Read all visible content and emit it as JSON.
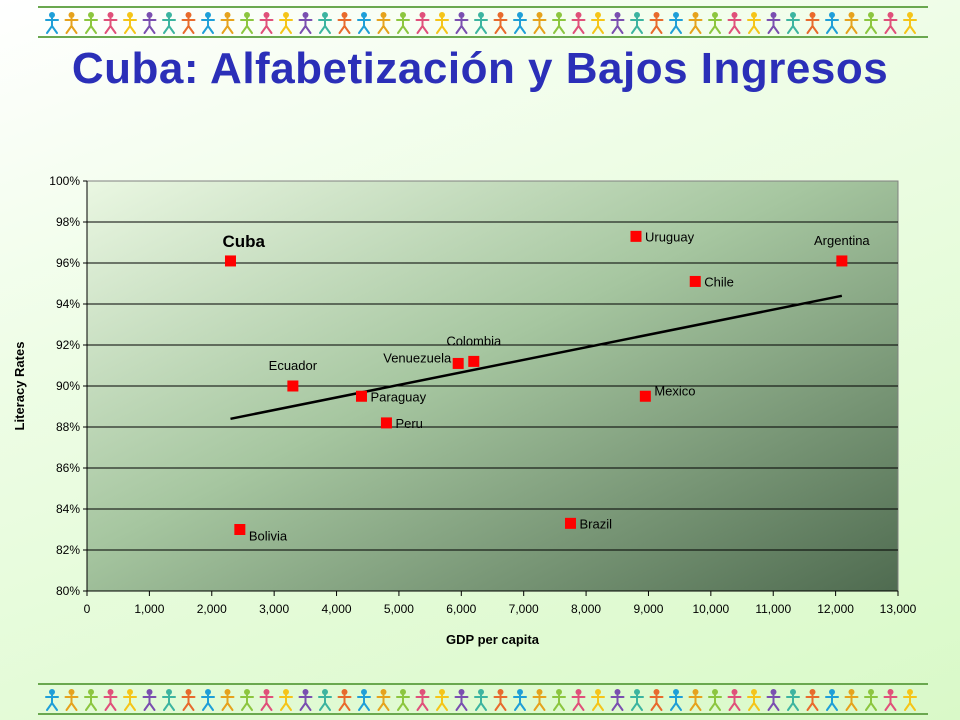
{
  "slide": {
    "title": "Cuba: Alfabetización y Bajos Ingresos"
  },
  "decoration": {
    "figure_colors": [
      "#1f9fd8",
      "#e6a21c",
      "#8cc63f",
      "#e0507a",
      "#f5c518",
      "#7a4fb0",
      "#3cb4a0",
      "#e86a2c"
    ]
  },
  "chart_data": {
    "type": "scatter",
    "xlabel": "GDP per capita",
    "ylabel": "Literacy Rates",
    "xlim": [
      0,
      13000
    ],
    "ylim": [
      80,
      100
    ],
    "x_ticks": [
      0,
      1000,
      2000,
      3000,
      4000,
      5000,
      6000,
      7000,
      8000,
      9000,
      10000,
      11000,
      12000,
      13000
    ],
    "x_tick_labels": [
      "0",
      "1,000",
      "2,000",
      "3,000",
      "4,000",
      "5,000",
      "6,000",
      "7,000",
      "8,000",
      "9,000",
      "10,000",
      "11,000",
      "12,000",
      "13,000"
    ],
    "y_ticks": [
      80,
      82,
      84,
      86,
      88,
      90,
      92,
      94,
      96,
      98,
      100
    ],
    "y_tick_labels": [
      "80%",
      "82%",
      "84%",
      "86%",
      "88%",
      "90%",
      "92%",
      "94%",
      "96%",
      "98%",
      "100%"
    ],
    "grid": "horizontal",
    "marker_color": "#ff0000",
    "trendline_color": "#000000",
    "points": [
      {
        "label": "Cuba",
        "x": 2300,
        "y": 96.1,
        "label_pos": "above",
        "bold": true
      },
      {
        "label": "Bolivia",
        "x": 2450,
        "y": 83.0,
        "label_pos": "right-below"
      },
      {
        "label": "Ecuador",
        "x": 3300,
        "y": 90.0,
        "label_pos": "above"
      },
      {
        "label": "Paraguay",
        "x": 4400,
        "y": 89.5,
        "label_pos": "right"
      },
      {
        "label": "Peru",
        "x": 4800,
        "y": 88.2,
        "label_pos": "right"
      },
      {
        "label": "Venuezuela",
        "x": 5950,
        "y": 91.1,
        "label_pos": "left"
      },
      {
        "label": "Colombia",
        "x": 6200,
        "y": 91.2,
        "label_pos": "above"
      },
      {
        "label": "Brazil",
        "x": 7750,
        "y": 83.3,
        "label_pos": "right"
      },
      {
        "label": "Uruguay",
        "x": 8800,
        "y": 97.3,
        "label_pos": "right"
      },
      {
        "label": "Mexico",
        "x": 8950,
        "y": 89.5,
        "label_pos": "right-above"
      },
      {
        "label": "Chile",
        "x": 9750,
        "y": 95.1,
        "label_pos": "right"
      },
      {
        "label": "Argentina",
        "x": 12100,
        "y": 96.1,
        "label_pos": "above"
      }
    ],
    "trendline": {
      "x": [
        2300,
        12100
      ],
      "y": [
        88.4,
        94.4
      ]
    }
  }
}
